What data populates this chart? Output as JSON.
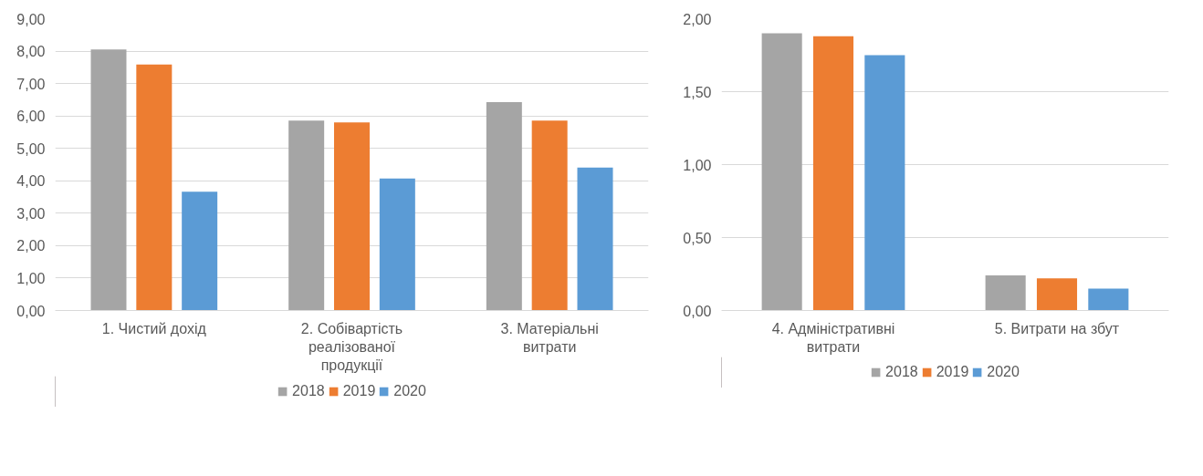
{
  "chart_data": [
    {
      "type": "bar",
      "categories": [
        "1. Чистий дохід",
        "2. Собівартість реалізованої продукції",
        "3. Матеріальні витрати"
      ],
      "series": [
        {
          "name": "2018",
          "color": "#a5a5a5",
          "values": [
            8.05,
            5.86,
            6.43
          ]
        },
        {
          "name": "2019",
          "color": "#ed7d31",
          "values": [
            7.59,
            5.8,
            5.86
          ]
        },
        {
          "name": "2020",
          "color": "#5b9bd5",
          "values": [
            3.66,
            4.07,
            4.41
          ]
        }
      ],
      "ylim": [
        0,
        9
      ],
      "yticks": [
        {
          "value": 0,
          "label": "0,00"
        },
        {
          "value": 1,
          "label": "1,00"
        },
        {
          "value": 2,
          "label": "2,00"
        },
        {
          "value": 3,
          "label": "3,00"
        },
        {
          "value": 4,
          "label": "4,00"
        },
        {
          "value": 5,
          "label": "5,00"
        },
        {
          "value": 6,
          "label": "6,00"
        },
        {
          "value": 7,
          "label": "7,00"
        },
        {
          "value": 8,
          "label": "8,00"
        },
        {
          "value": 9,
          "label": "9,00"
        }
      ],
      "grid": "y",
      "legend": "bottom"
    },
    {
      "type": "bar",
      "categories": [
        "4. Адміністративні витрати",
        "5. Витрати на збут"
      ],
      "series": [
        {
          "name": "2018",
          "color": "#a5a5a5",
          "values": [
            1.9,
            0.24
          ]
        },
        {
          "name": "2019",
          "color": "#ed7d31",
          "values": [
            1.88,
            0.22
          ]
        },
        {
          "name": "2020",
          "color": "#5b9bd5",
          "values": [
            1.75,
            0.15
          ]
        }
      ],
      "ylim": [
        0,
        2
      ],
      "yticks": [
        {
          "value": 0,
          "label": "0,00"
        },
        {
          "value": 0.5,
          "label": "0,50"
        },
        {
          "value": 1,
          "label": "1,00"
        },
        {
          "value": 1.5,
          "label": "1,50"
        },
        {
          "value": 2,
          "label": "2,00"
        }
      ],
      "grid": "y",
      "legend": "bottom"
    }
  ]
}
